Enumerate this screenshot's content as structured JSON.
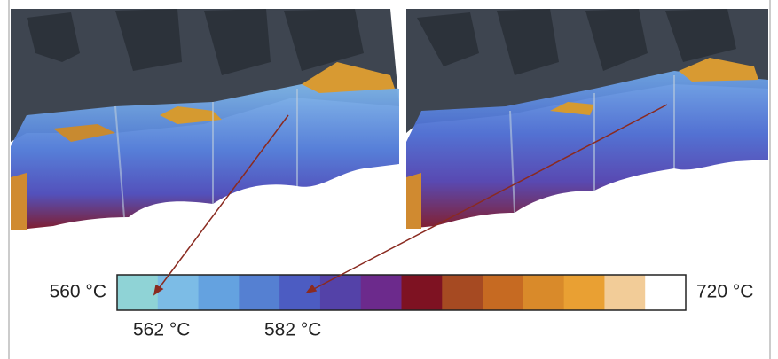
{
  "colorbar": {
    "min_label": "560 °C",
    "max_label": "720 °C",
    "colors": [
      "#8fd3d6",
      "#7cbce6",
      "#64a2e0",
      "#5580d2",
      "#4c5cc2",
      "#5442a8",
      "#6c2a8c",
      "#7e1222",
      "#a64a22",
      "#c66a22",
      "#d98a2a",
      "#e9a033",
      "#f2cc98",
      "#ffffff"
    ]
  },
  "annotations": [
    {
      "label": "562 °C"
    },
    {
      "label": "582 °C"
    }
  ]
}
